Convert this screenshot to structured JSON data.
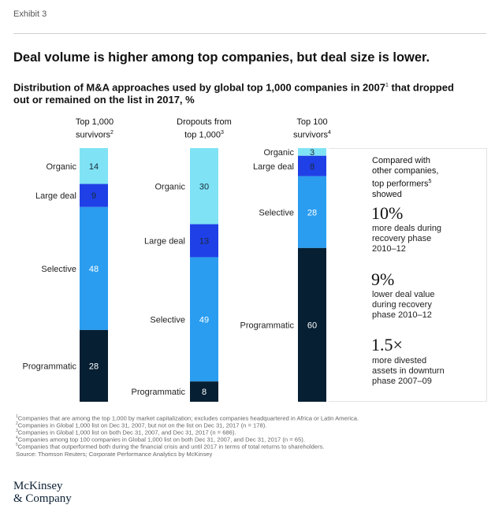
{
  "header": {
    "exhibit": "Exhibit 3",
    "title": "Deal volume is higher among top companies, but deal size is lower.",
    "subtitle_pre": "Distribution of M&A approaches used by global top 1,000 companies in 2007",
    "subtitle_mark": "1",
    "subtitle_post": " that dropped out or remained on the list in 2017, %"
  },
  "columns": [
    {
      "line1": "Top 1,000",
      "line2": "survivors",
      "mark": "2"
    },
    {
      "line1": "Dropouts from",
      "line2": "top 1,000",
      "mark": "3"
    },
    {
      "line1": "Top 100",
      "line2": "survivors",
      "mark": "4"
    }
  ],
  "chart_data": {
    "type": "bar",
    "stacked": true,
    "unit": "%",
    "categories": [
      "Top 1,000 survivors",
      "Dropouts from top 1,000",
      "Top 100 survivors"
    ],
    "series": [
      {
        "name": "Organic",
        "values": [
          14,
          30,
          3
        ],
        "color": "#7fe3f5"
      },
      {
        "name": "Large deal",
        "values": [
          9,
          13,
          8
        ],
        "color": "#1f40e6"
      },
      {
        "name": "Selective",
        "values": [
          48,
          49,
          28
        ],
        "color": "#2a9df0"
      },
      {
        "name": "Programmatic",
        "values": [
          28,
          8,
          60
        ],
        "color": "#061f33"
      }
    ]
  },
  "callout": {
    "intro_line1": "Compared with",
    "intro_line2": "other companies,",
    "intro_line3": "top performers",
    "intro_mark": "5",
    "intro_line4": "showed",
    "stats": [
      {
        "value": "10%",
        "desc": [
          "more deals during",
          "recovery phase",
          "2010–12"
        ]
      },
      {
        "value": "9%",
        "desc": [
          "lower deal value",
          "during recovery",
          "phase 2010–12"
        ]
      },
      {
        "value": "1.5×",
        "desc": [
          "more divested",
          "assets in downturn",
          "phase 2007–09"
        ]
      }
    ]
  },
  "footnotes": [
    {
      "mark": "1",
      "text": "Companies that are among the top 1,000 by market capitalization; excludes companies headquartered in Africa or Latin America."
    },
    {
      "mark": "2",
      "text": "Companies in Global 1,000 list on Dec 31, 2007, but not on the list on Dec 31, 2017 (n = 178)."
    },
    {
      "mark": "3",
      "text": "Companies in Global 1,000 list on both Dec 31, 2007, and Dec 31, 2017 (n = 686)."
    },
    {
      "mark": "4",
      "text": "Companies among top 100 companies in Global 1,000 list on both Dec 31, 2007, and Dec 31, 2017 (n = 65)."
    },
    {
      "mark": "5",
      "text": "Companies that outperformed both during the financial crisis and until 2017 in terms of total returns to shareholders."
    },
    {
      "mark": "",
      "text": "Source: Thomson Reuters; Corporate Performance Analytics by McKinsey"
    }
  ],
  "logo": {
    "line1": "McKinsey",
    "line2": "& Company"
  }
}
